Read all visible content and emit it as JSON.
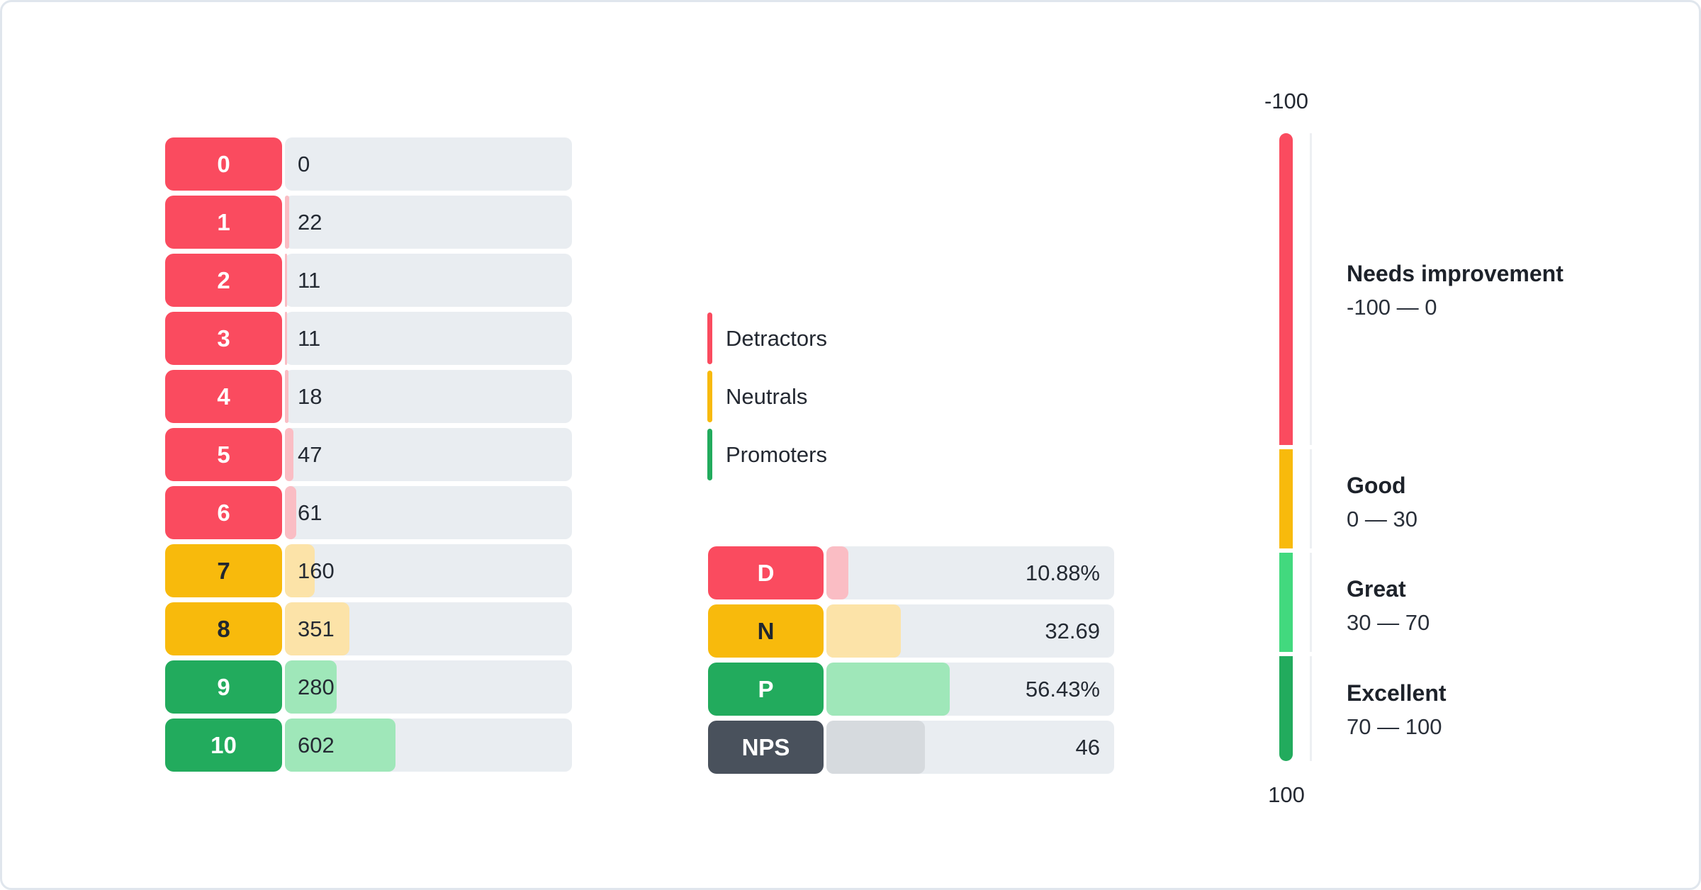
{
  "chart_data": {
    "type": "bar",
    "score_distribution": {
      "categories": [
        "0",
        "1",
        "2",
        "3",
        "4",
        "5",
        "6",
        "7",
        "8",
        "9",
        "10"
      ],
      "values": [
        0,
        22,
        11,
        11,
        18,
        47,
        61,
        160,
        351,
        280,
        602
      ],
      "groups": [
        "detractor",
        "detractor",
        "detractor",
        "detractor",
        "detractor",
        "detractor",
        "detractor",
        "neutral",
        "neutral",
        "promoter",
        "promoter"
      ]
    },
    "legend": [
      {
        "label": "Detractors",
        "group": "detractor"
      },
      {
        "label": "Neutrals",
        "group": "neutral"
      },
      {
        "label": "Promoters",
        "group": "promoter"
      }
    ],
    "summary": [
      {
        "label": "D",
        "value": "10.88%",
        "group": "detractor",
        "fill_pct": 7.7
      },
      {
        "label": "N",
        "value": "32.69",
        "group": "neutral",
        "fill_pct": 25.9
      },
      {
        "label": "P",
        "value": "56.43%",
        "group": "promoter",
        "fill_pct": 42.9
      },
      {
        "label": "NPS",
        "value": "46",
        "group": "nps",
        "fill_pct": 34.3
      }
    ],
    "gauge": {
      "top_label": "-100",
      "bottom_label": "100",
      "axis_range": [
        -100,
        100
      ],
      "zones": [
        {
          "name": "Needs improvement",
          "range": "-100 — 0",
          "group": "detractor"
        },
        {
          "name": "Good",
          "range": "0 — 30",
          "group": "neutral"
        },
        {
          "name": "Great",
          "range": "30 — 70",
          "group": "great"
        },
        {
          "name": "Excellent",
          "range": "70 — 100",
          "group": "promoter"
        }
      ]
    },
    "colors": {
      "detractor": "#fa4b5f",
      "detractor_light": "#fabdc4",
      "neutral": "#f8ba0c",
      "neutral_light": "#fce3a8",
      "promoter": "#22ab5d",
      "promoter_light": "#9fe7b9",
      "great": "#42d97e",
      "nps": "#49515c",
      "nps_light": "#d6dade",
      "track": "#e9edf1",
      "pill_text_light": "#ffffff",
      "pill_text_dark": "#212730"
    }
  }
}
